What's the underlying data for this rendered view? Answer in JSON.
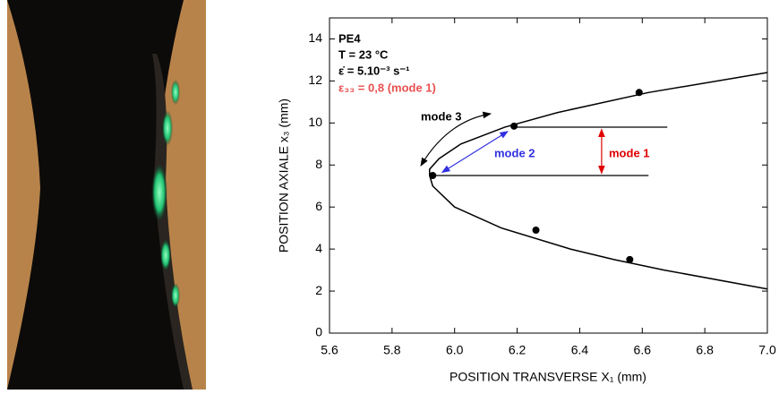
{
  "chart_data": {
    "type": "scatter",
    "xlabel": "POSITION TRANSVERSE X₁ (mm)",
    "ylabel": "POSITION AXIALE x₃ (mm)",
    "xlim": [
      5.6,
      7.0
    ],
    "xticks": [
      5.6,
      5.8,
      {
        "value": 6.0,
        "label": "6.0"
      },
      6.2,
      6.4,
      6.6,
      6.8,
      {
        "value": 7.0,
        "label": "7.0"
      }
    ],
    "ylim": [
      0,
      15
    ],
    "yticks": [
      0,
      2,
      4,
      6,
      8,
      10,
      12,
      14
    ],
    "curve": {
      "color": "#000000",
      "x": [
        7.0,
        6.62,
        6.33,
        6.16,
        6.02,
        5.95,
        5.92,
        5.92,
        5.93,
        6.0,
        6.15,
        6.37,
        6.51,
        6.67,
        7.0
      ],
      "y": [
        12.4,
        11.45,
        10.5,
        9.8,
        9.0,
        8.3,
        7.8,
        7.5,
        7.0,
        6.0,
        5.0,
        4.0,
        3.5,
        3.0,
        2.1
      ]
    },
    "points": {
      "color": "#000000",
      "x": [
        5.93,
        6.19,
        6.59,
        6.26,
        6.56
      ],
      "y": [
        7.5,
        9.85,
        11.45,
        4.9,
        3.5
      ]
    },
    "lines": [
      {
        "x": [
          6.2,
          6.68
        ],
        "y": [
          9.8,
          9.8
        ],
        "color": "#000000",
        "arrows": false
      },
      {
        "x": [
          5.93,
          6.62
        ],
        "y": [
          7.5,
          7.5
        ],
        "color": "#000000",
        "arrows": false
      },
      {
        "x": [
          6.47,
          6.47
        ],
        "y": [
          7.6,
          9.7
        ],
        "color": "#e00000",
        "arrows": true
      },
      {
        "x": [
          5.96,
          6.17
        ],
        "y": [
          7.65,
          9.6
        ],
        "color": "#3030e0",
        "arrows": true
      }
    ],
    "annotations": [
      {
        "text": "PE4",
        "color": "#000000"
      },
      {
        "text": "T = 23 °C",
        "color": "#000000"
      },
      {
        "text": "ε̇ = 5.10⁻³ s⁻¹",
        "color": "#000000"
      },
      {
        "text": "ε₃₃ = 0,8 (mode 1)",
        "color": "#e85050"
      },
      {
        "text": "mode 3",
        "color": "#000000"
      },
      {
        "text": "mode 2",
        "color": "#3030e0"
      },
      {
        "text": "mode 1",
        "color": "#e00000"
      }
    ]
  }
}
